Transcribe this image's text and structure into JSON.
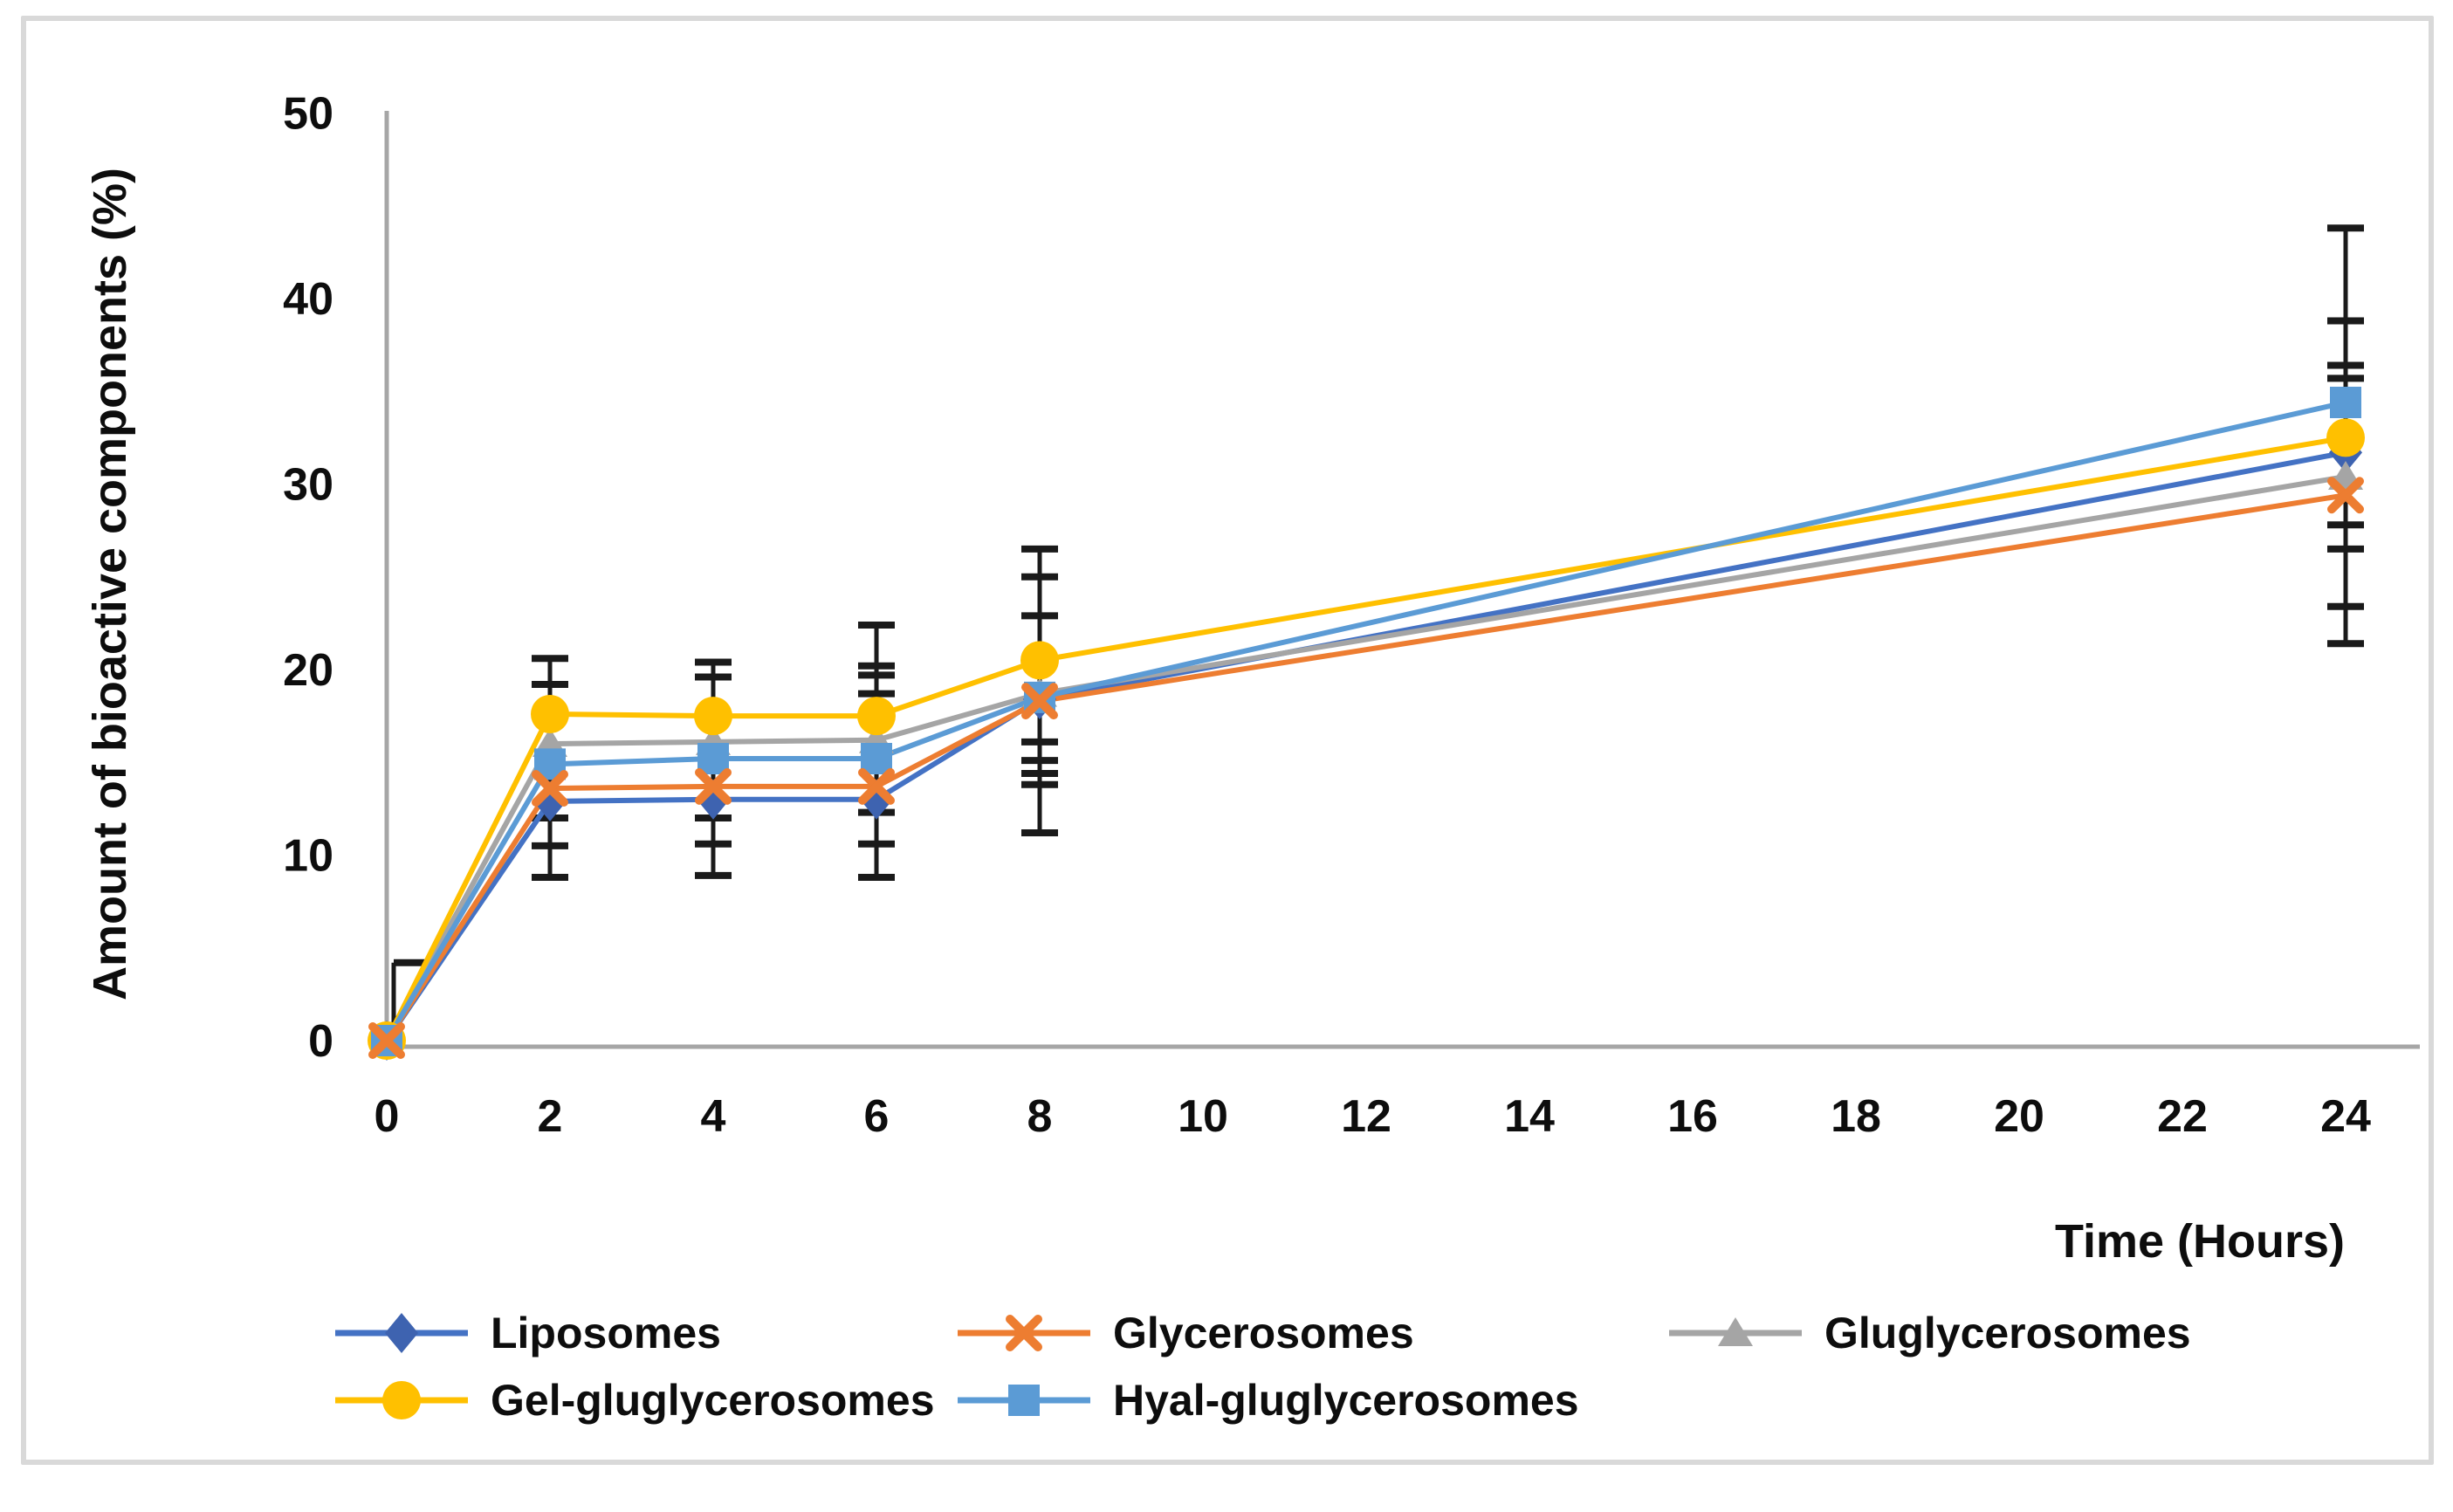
{
  "figure": {
    "background": "#ffffff",
    "border_color": "#d9d9d9",
    "axis_color": "#a6a6a6",
    "error_bar_color": "#1a1a1a",
    "tick_label_color": "#0d0d0d"
  },
  "chart_data": {
    "type": "line",
    "title": "",
    "xlabel": "Time (Hours)",
    "ylabel": "Amount of bioactive components (%)",
    "xlim": [
      0,
      24
    ],
    "ylim": [
      0,
      50
    ],
    "grid": false,
    "legend_position": "bottom-left, two rows",
    "x_ticks": [
      0,
      2,
      4,
      6,
      8,
      10,
      12,
      14,
      16,
      18,
      20,
      22,
      24
    ],
    "y_ticks": [
      0,
      10,
      20,
      30,
      40,
      50
    ],
    "x_hours": [
      0,
      2,
      4,
      6,
      8,
      24
    ],
    "series": [
      {
        "name": "Liposomes",
        "marker": "diamond",
        "color": "#4472C4",
        "marker_color": "#3E63B0",
        "values": [
          0,
          12.9,
          13.0,
          13.0,
          18.4,
          31.7
        ]
      },
      {
        "name": "Glycerosomes",
        "marker": "x",
        "color": "#ED7D31",
        "marker_color": "#ED7D31",
        "values": [
          0,
          13.6,
          13.7,
          13.7,
          18.3,
          29.4
        ]
      },
      {
        "name": "Gluglycerosomes",
        "marker": "triangle",
        "color": "#A5A5A5",
        "marker_color": "#A5A5A5",
        "values": [
          0,
          16.0,
          16.1,
          16.2,
          18.7,
          30.4
        ]
      },
      {
        "name": "Gel-gluglycerosomes",
        "marker": "circle",
        "color": "#FFC000",
        "marker_color": "#FFC000",
        "values": [
          0,
          17.6,
          17.5,
          17.5,
          20.5,
          32.5
        ]
      },
      {
        "name": "Hyal-gluglycerosomes",
        "marker": "square",
        "color": "#5B9BD5",
        "marker_color": "#5B9BD5",
        "values": [
          0,
          14.9,
          15.2,
          15.2,
          18.5,
          34.4
        ]
      }
    ],
    "error_bars": [
      {
        "x": 0,
        "min": 0,
        "max": 4.2,
        "caps": [
          4.2
        ],
        "cap_side": "right"
      },
      {
        "x": 2,
        "min": 8.8,
        "max": 20.6,
        "caps": [
          20.6,
          19.2,
          12.0,
          10.5,
          8.8
        ]
      },
      {
        "x": 4,
        "min": 8.9,
        "max": 20.4,
        "caps": [
          20.4,
          19.6,
          12.0,
          10.6,
          8.9
        ]
      },
      {
        "x": 6,
        "min": 8.8,
        "max": 22.4,
        "caps": [
          22.4,
          20.2,
          19.7,
          18.7,
          12.3,
          10.6,
          8.8
        ]
      },
      {
        "x": 8,
        "min": 11.2,
        "max": 26.5,
        "caps": [
          26.5,
          25.0,
          22.9,
          16.1,
          15.1,
          14.4,
          13.8,
          11.2
        ]
      },
      {
        "x": 24,
        "min": 21.4,
        "max": 43.8,
        "caps": [
          43.8,
          38.8,
          36.4,
          35.7,
          27.8,
          26.5,
          23.4,
          21.4
        ]
      }
    ],
    "marker_draw_order": [
      0,
      2,
      3,
      4,
      1
    ]
  },
  "legend": {
    "rows": [
      [
        "Liposomes",
        "Glycerosomes",
        "Gluglycerosomes"
      ],
      [
        "Gel-gluglycerosomes",
        "Hyal-gluglycerosomes"
      ]
    ]
  }
}
